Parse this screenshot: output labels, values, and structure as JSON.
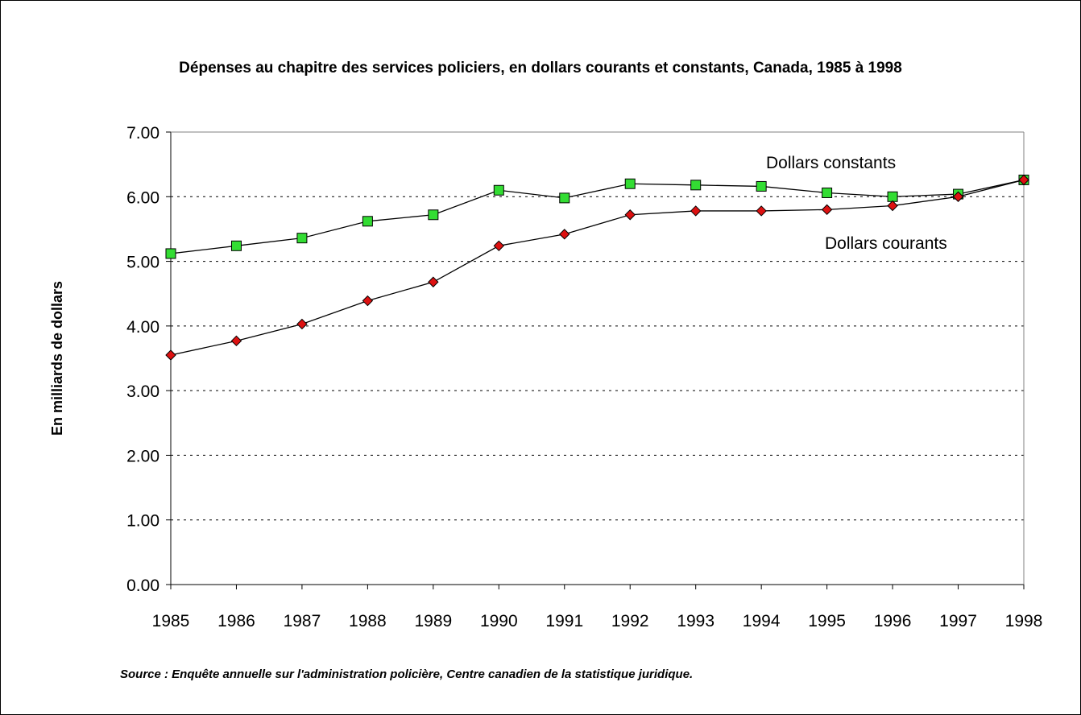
{
  "chart_data": {
    "type": "line",
    "title": "Dépenses au chapitre des services policiers, en dollars courants et constants, Canada, 1985 à 1998",
    "xlabel": "",
    "ylabel": "En milliards de dollars",
    "x": [
      "1985",
      "1986",
      "1987",
      "1988",
      "1989",
      "1990",
      "1991",
      "1992",
      "1993",
      "1994",
      "1995",
      "1996",
      "1997",
      "1998"
    ],
    "ylim": [
      0,
      7
    ],
    "yticks": [
      "0.00",
      "1.00",
      "2.00",
      "3.00",
      "4.00",
      "5.00",
      "6.00",
      "7.00"
    ],
    "grid": "horizontal dotted",
    "series": [
      {
        "name": "Dollars constants",
        "marker": "square",
        "color": "#33dd33",
        "values": [
          5.12,
          5.24,
          5.36,
          5.62,
          5.72,
          6.1,
          5.98,
          6.2,
          6.18,
          6.16,
          6.06,
          6.0,
          6.04,
          6.26
        ]
      },
      {
        "name": "Dollars courants",
        "marker": "diamond",
        "color": "#dd1111",
        "values": [
          3.55,
          3.77,
          4.03,
          4.39,
          4.68,
          5.24,
          5.42,
          5.72,
          5.78,
          5.78,
          5.8,
          5.86,
          6.0,
          6.26
        ]
      }
    ]
  },
  "footer": {
    "source": "Source : Enquête annuelle sur l'administration policière, Centre canadien de la statistique juridique."
  }
}
